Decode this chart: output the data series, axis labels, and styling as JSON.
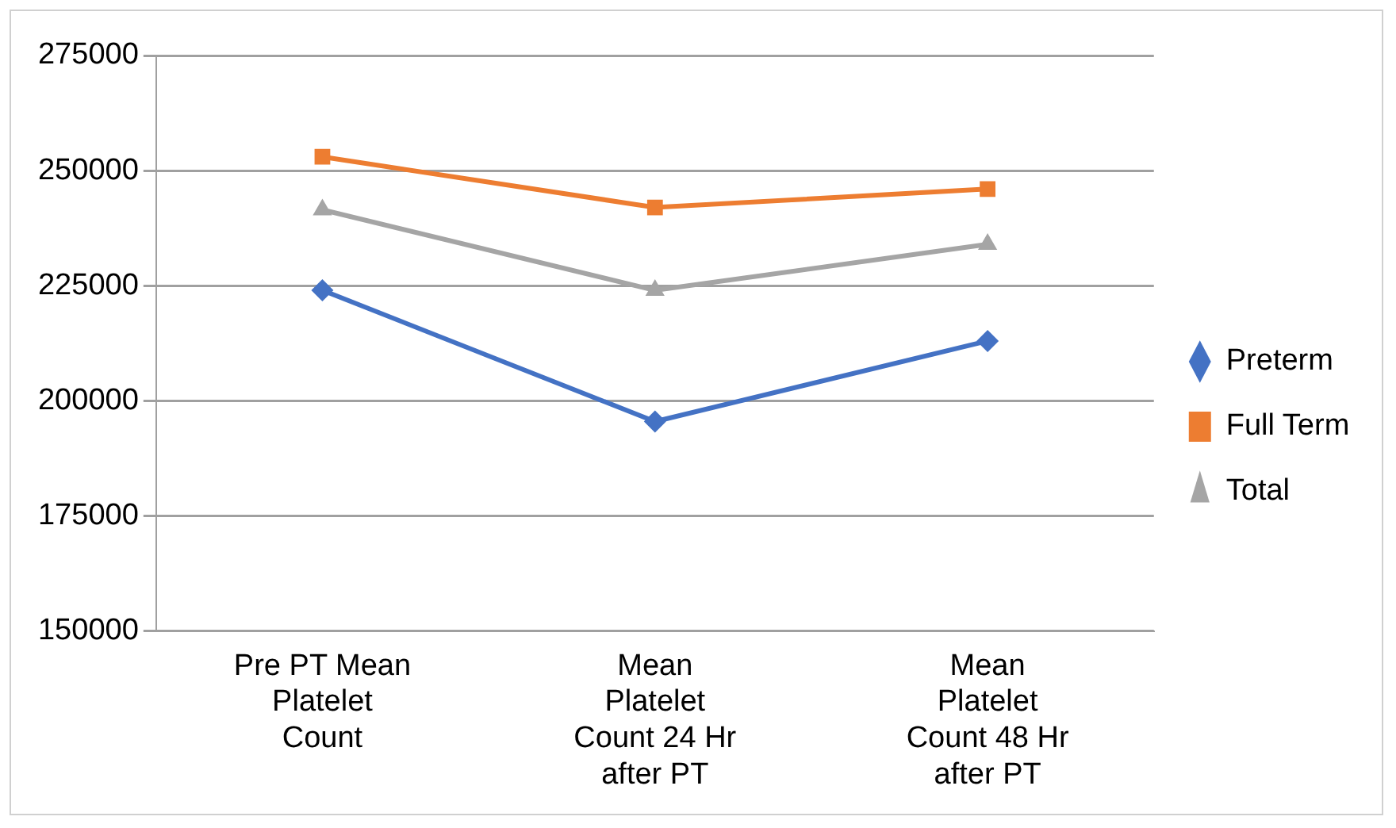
{
  "chart_data": {
    "type": "line",
    "categories": [
      "Pre PT Mean Platelet Count",
      "Mean Platelet Count 24 Hr after PT",
      "Mean Platelet Count 48 Hr after PT"
    ],
    "series": [
      {
        "name": "Preterm",
        "color": "#4472c4",
        "marker": "diamond",
        "values": [
          224000,
          195500,
          213000
        ]
      },
      {
        "name": "Full Term",
        "color": "#ed7d31",
        "marker": "square",
        "values": [
          253000,
          242000,
          246000
        ]
      },
      {
        "name": "Total",
        "color": "#a5a5a5",
        "marker": "triangle",
        "values": [
          241500,
          224000,
          234000
        ]
      }
    ],
    "ylim": [
      150000,
      275000
    ],
    "yticks": [
      150000,
      175000,
      200000,
      225000,
      250000,
      275000
    ],
    "grid": "y",
    "legend": "right",
    "line_style": "solid"
  }
}
